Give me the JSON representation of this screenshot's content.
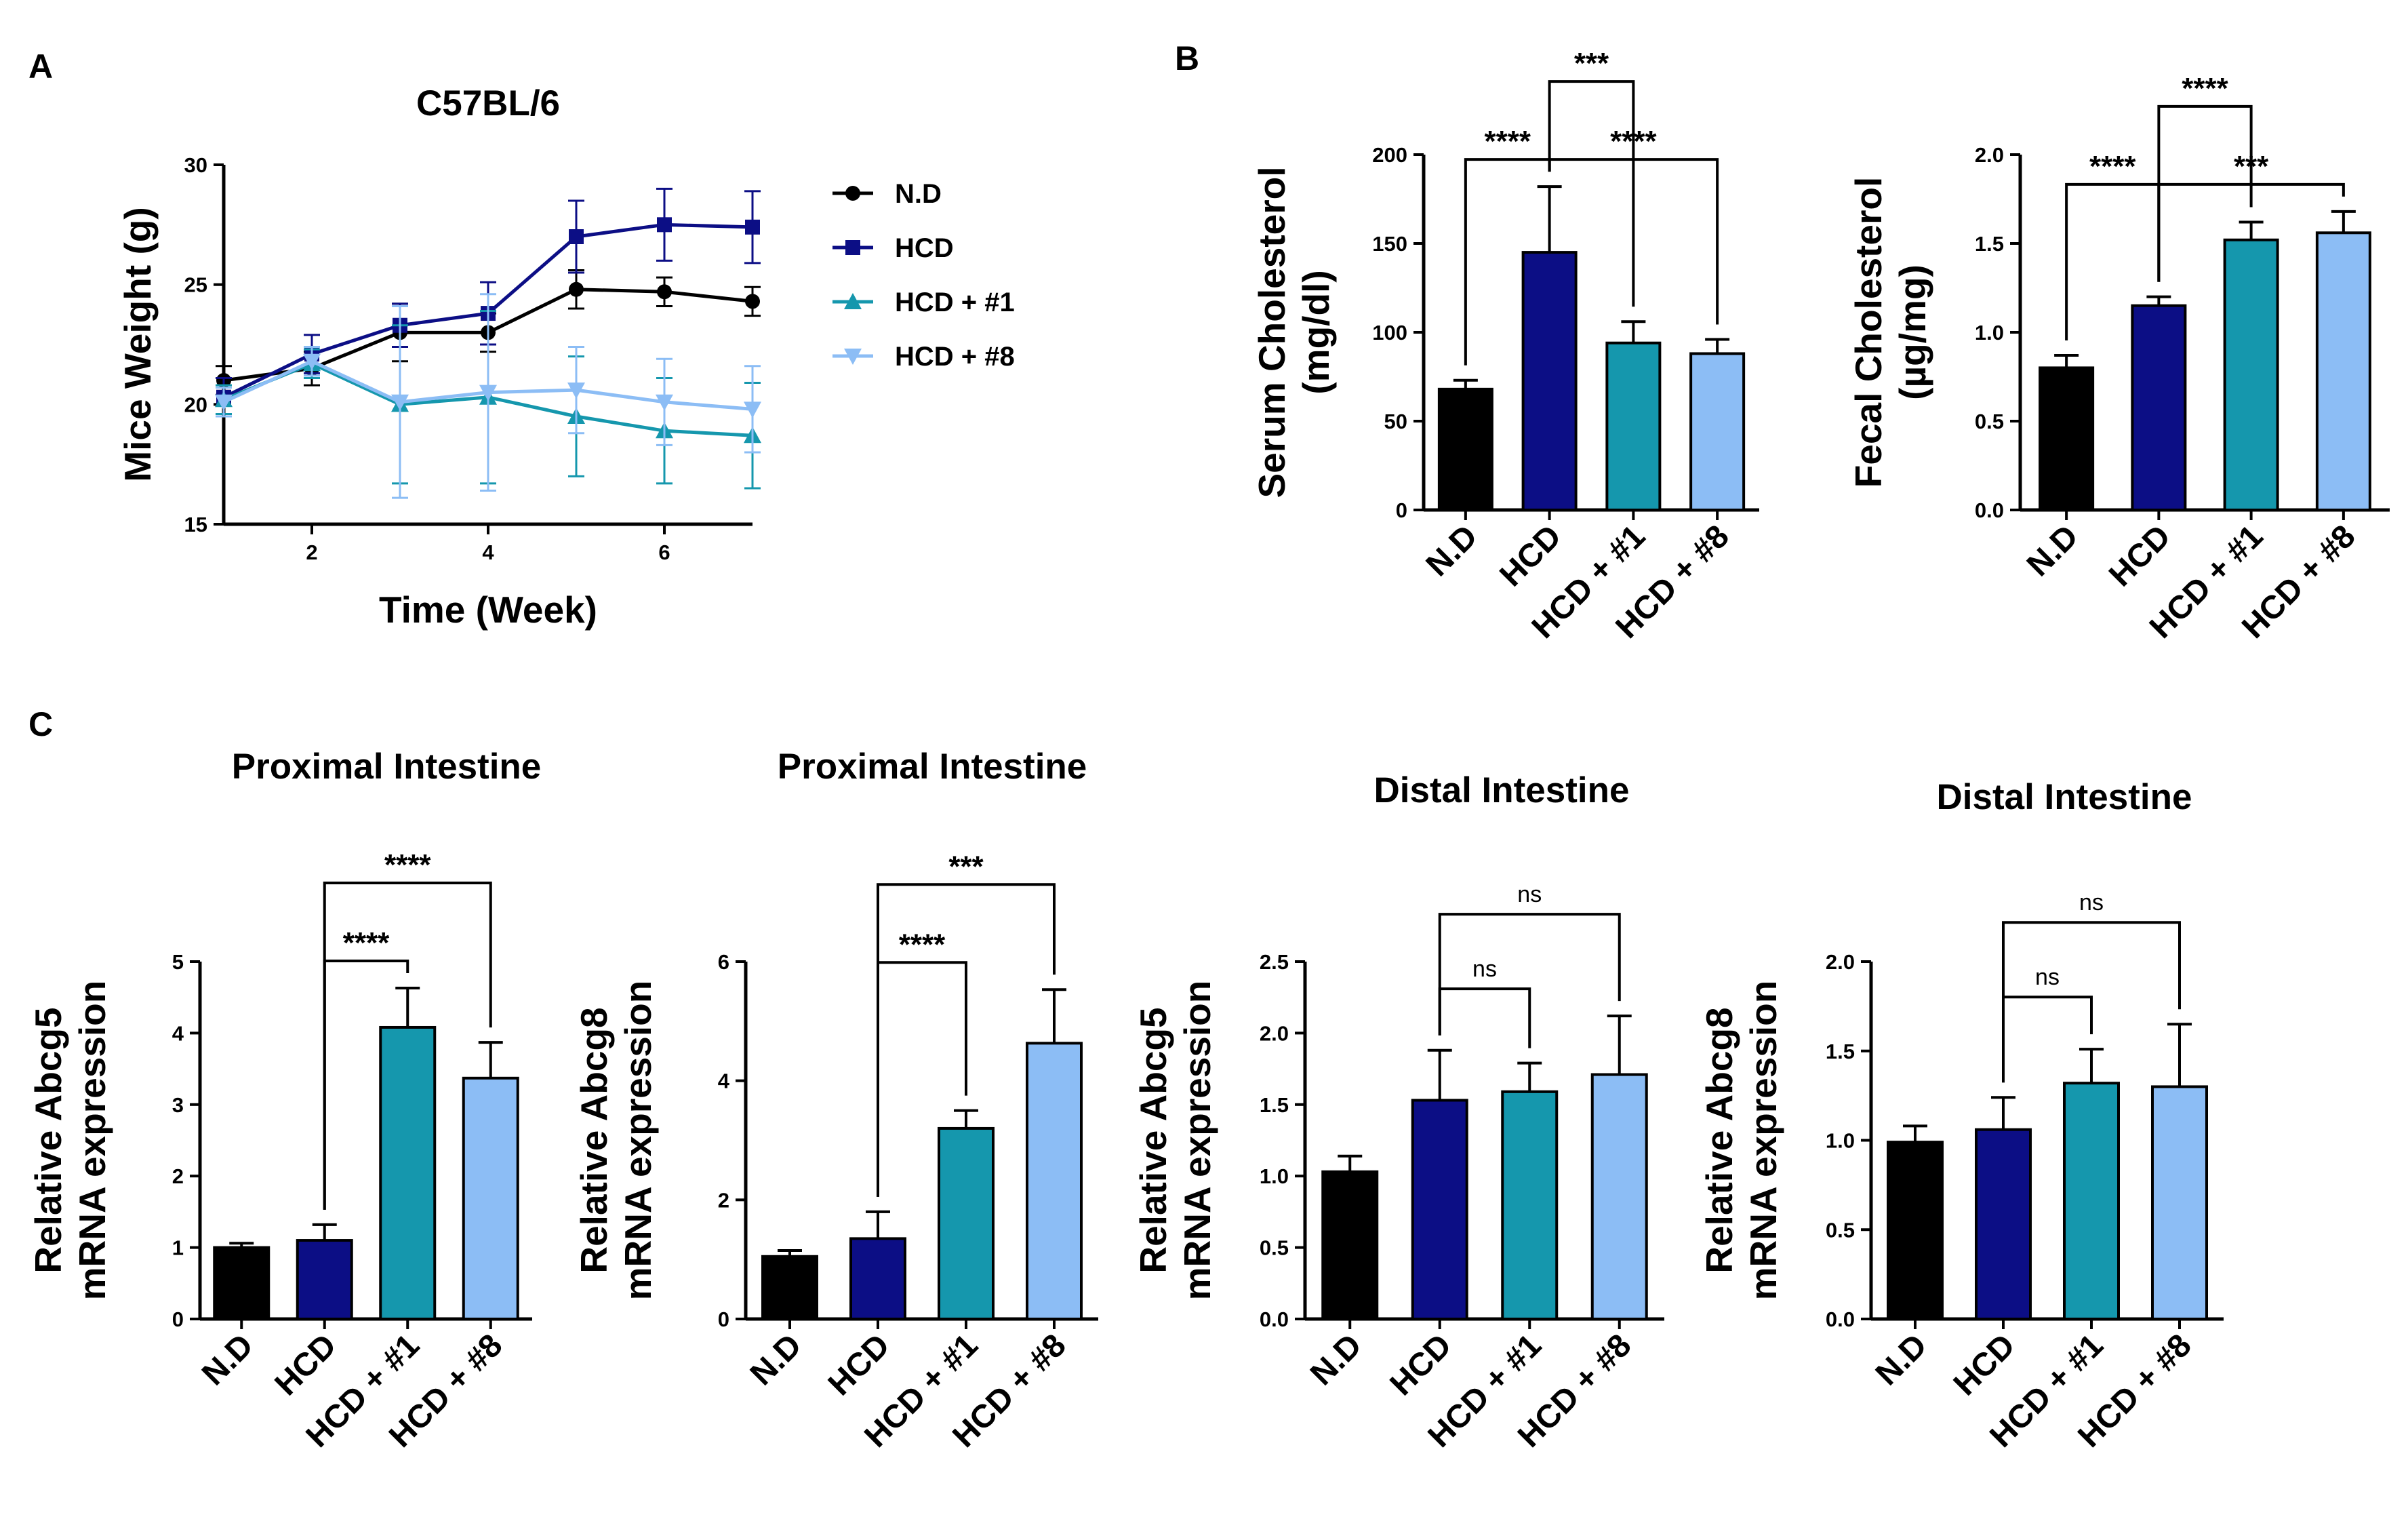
{
  "groups": [
    "N.D",
    "HCD",
    "HCD + #1",
    "HCD + #8"
  ],
  "colors": {
    "N.D": "#000000",
    "HCD": "#0c0e85",
    "HCD + #1": "#1597ad",
    "HCD + #8": "#8cbdf5"
  },
  "panel_labels": [
    "A",
    "B",
    "C"
  ],
  "chart_data": [
    {
      "id": "A",
      "type": "line",
      "title": "C57BL/6",
      "xlabel": "Time (Week)",
      "ylabel": "Mice Weight (g)",
      "xlim": [
        1,
        7
      ],
      "ylim": [
        15,
        30
      ],
      "xticks": [
        2,
        4,
        6
      ],
      "yticks": [
        15,
        20,
        25,
        30
      ],
      "legend": "right",
      "x": [
        1,
        2,
        3,
        4,
        5,
        6,
        7
      ],
      "series": [
        {
          "name": "N.D",
          "marker": "circle",
          "values": [
            21.0,
            21.5,
            23.0,
            23.0,
            24.8,
            24.7,
            24.3
          ],
          "errors": [
            0.6,
            0.7,
            1.2,
            0.8,
            0.8,
            0.6,
            0.6
          ]
        },
        {
          "name": "HCD",
          "marker": "square",
          "values": [
            20.3,
            22.1,
            23.3,
            23.8,
            27.0,
            27.5,
            27.4
          ],
          "errors": [
            0.8,
            0.8,
            0.9,
            1.3,
            1.5,
            1.5,
            1.5
          ]
        },
        {
          "name": "HCD + #1",
          "marker": "triangle-up",
          "values": [
            20.2,
            21.7,
            20.0,
            20.3,
            19.5,
            18.9,
            18.7
          ],
          "errors": [
            0.6,
            0.6,
            3.3,
            3.6,
            2.5,
            2.2,
            2.2
          ]
        },
        {
          "name": "HCD + #8",
          "marker": "triangle-down",
          "values": [
            20.1,
            21.8,
            20.1,
            20.5,
            20.6,
            20.1,
            19.8
          ],
          "errors": [
            0.6,
            0.6,
            4.0,
            4.1,
            1.8,
            1.8,
            1.8
          ]
        }
      ]
    },
    {
      "id": "B1",
      "type": "bar",
      "title": "",
      "ylabel_lines": [
        "Serum Cholesterol",
        "(mg/dl)"
      ],
      "ylim": [
        0,
        200
      ],
      "yticks": [
        0,
        50,
        100,
        150,
        200
      ],
      "ytick_labels": [
        "0",
        "50",
        "100",
        "150",
        "200"
      ],
      "categories": [
        "N.D",
        "HCD",
        "HCD + #1",
        "HCD + #8"
      ],
      "values": [
        68,
        145,
        94,
        88
      ],
      "errors": [
        5,
        37,
        12,
        8
      ],
      "significance": [
        {
          "from": 0,
          "to": 1,
          "label": "****",
          "level": 1
        },
        {
          "from": 1,
          "to": 3,
          "label": "****",
          "level": 1
        },
        {
          "from": 1,
          "to": 2,
          "label": "***",
          "level": 2
        }
      ]
    },
    {
      "id": "B2",
      "type": "bar",
      "title": "",
      "ylabel_lines": [
        "Fecal Cholesterol",
        "(µg/mg)"
      ],
      "ylim": [
        0,
        2.0
      ],
      "yticks": [
        0,
        0.5,
        1.0,
        1.5,
        2.0
      ],
      "ytick_labels": [
        "0.0",
        "0.5",
        "1.0",
        "1.5",
        "2.0"
      ],
      "categories": [
        "N.D",
        "HCD",
        "HCD + #1",
        "HCD + #8"
      ],
      "values": [
        0.8,
        1.15,
        1.52,
        1.56
      ],
      "errors": [
        0.07,
        0.05,
        0.1,
        0.12
      ],
      "significance": [
        {
          "from": 0,
          "to": 1,
          "label": "****",
          "level": 1
        },
        {
          "from": 1,
          "to": 3,
          "label": "***",
          "level": 1
        },
        {
          "from": 1,
          "to": 2,
          "label": "****",
          "level": 2
        }
      ]
    },
    {
      "id": "C1",
      "type": "bar",
      "title": "Proximal Intestine",
      "ylabel_lines": [
        "Relative Abcg5",
        "mRNA expression"
      ],
      "ylim": [
        0,
        5
      ],
      "yticks": [
        0,
        1,
        2,
        3,
        4,
        5
      ],
      "ytick_labels": [
        "0",
        "1",
        "2",
        "3",
        "4",
        "5"
      ],
      "categories": [
        "N.D",
        "HCD",
        "HCD + #1",
        "HCD + #8"
      ],
      "values": [
        1.0,
        1.1,
        4.08,
        3.37
      ],
      "errors": [
        0.06,
        0.22,
        0.55,
        0.5
      ],
      "significance": [
        {
          "from": 1,
          "to": 2,
          "label": "****",
          "level": 1
        },
        {
          "from": 1,
          "to": 3,
          "label": "****",
          "level": 2
        }
      ]
    },
    {
      "id": "C2",
      "type": "bar",
      "title": "Proximal Intestine",
      "ylabel_lines": [
        "Relative Abcg8",
        "mRNA expression"
      ],
      "ylim": [
        0,
        6
      ],
      "yticks": [
        0,
        2,
        4,
        6
      ],
      "ytick_labels": [
        "0",
        "2",
        "4",
        "6"
      ],
      "categories": [
        "N.D",
        "HCD",
        "HCD + #1",
        "HCD + #8"
      ],
      "values": [
        1.05,
        1.35,
        3.2,
        4.63
      ],
      "errors": [
        0.1,
        0.45,
        0.3,
        0.9
      ],
      "significance": [
        {
          "from": 1,
          "to": 2,
          "label": "****",
          "level": 1
        },
        {
          "from": 1,
          "to": 3,
          "label": "***",
          "level": 2
        }
      ]
    },
    {
      "id": "C3",
      "type": "bar",
      "title": "Distal Intestine",
      "ylabel_lines": [
        "Relative Abcg5",
        "mRNA expression"
      ],
      "ylim": [
        0,
        2.5
      ],
      "yticks": [
        0,
        0.5,
        1.0,
        1.5,
        2.0,
        2.5
      ],
      "ytick_labels": [
        "0.0",
        "0.5",
        "1.0",
        "1.5",
        "2.0",
        "2.5"
      ],
      "categories": [
        "N.D",
        "HCD",
        "HCD + #1",
        "HCD + #8"
      ],
      "values": [
        1.03,
        1.53,
        1.59,
        1.71
      ],
      "errors": [
        0.11,
        0.35,
        0.2,
        0.41
      ],
      "significance": [
        {
          "from": 1,
          "to": 2,
          "label": "ns",
          "level": 1
        },
        {
          "from": 1,
          "to": 3,
          "label": "ns",
          "level": 2
        }
      ]
    },
    {
      "id": "C4",
      "type": "bar",
      "title": "Distal Intestine",
      "ylabel_lines": [
        "Relative Abcg8",
        "mRNA expression"
      ],
      "ylim": [
        0,
        2.0
      ],
      "yticks": [
        0,
        0.5,
        1.0,
        1.5,
        2.0
      ],
      "ytick_labels": [
        "0.0",
        "0.5",
        "1.0",
        "1.5",
        "2.0"
      ],
      "categories": [
        "N.D",
        "HCD",
        "HCD + #1",
        "HCD + #8"
      ],
      "values": [
        0.99,
        1.06,
        1.32,
        1.3
      ],
      "errors": [
        0.09,
        0.18,
        0.19,
        0.35
      ],
      "significance": [
        {
          "from": 1,
          "to": 2,
          "label": "ns",
          "level": 1
        },
        {
          "from": 1,
          "to": 3,
          "label": "ns",
          "level": 2
        }
      ]
    }
  ]
}
